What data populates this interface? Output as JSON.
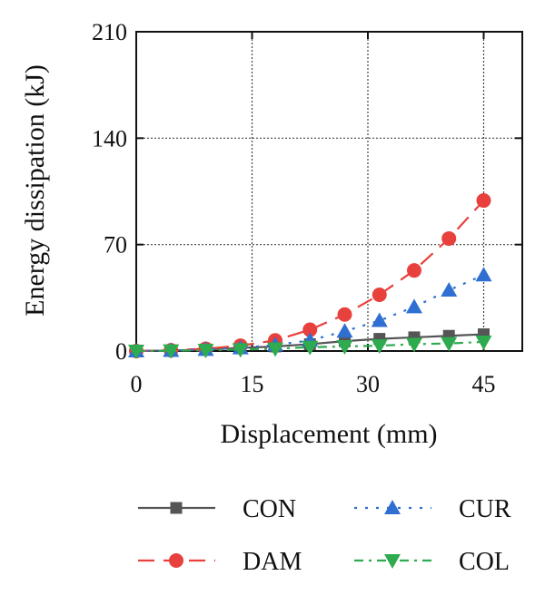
{
  "chart_data": {
    "type": "line",
    "title": "",
    "xlabel": "Displacement (mm)",
    "ylabel": "Energy dissipation (kJ)",
    "xlim": [
      0,
      50
    ],
    "ylim": [
      0,
      210
    ],
    "xticks": [
      "0",
      "15",
      "30",
      "45"
    ],
    "yticks": [
      "0",
      "70",
      "140",
      "210"
    ],
    "grid": true,
    "legend_position": "bottom",
    "x": [
      0,
      4.5,
      9,
      13.5,
      18,
      22.5,
      27,
      31.5,
      36,
      40.5,
      45
    ],
    "series": [
      {
        "name": "CON",
        "color": "#555555",
        "marker": "square",
        "dash": "solid",
        "values": [
          0,
          0.3,
          1,
          2,
          3,
          4.5,
          6.5,
          8,
          9,
          10,
          11
        ]
      },
      {
        "name": "DAM",
        "color": "#e8403c",
        "marker": "circle",
        "dash": "longdash",
        "values": [
          0,
          0.5,
          1.5,
          3.5,
          7,
          14,
          24,
          37,
          53,
          74,
          99
        ]
      },
      {
        "name": "CUR",
        "color": "#2f6fd1",
        "marker": "triangle-up",
        "dash": "dot",
        "values": [
          0,
          0.3,
          1,
          2,
          4,
          7,
          13,
          20,
          29,
          40,
          50
        ]
      },
      {
        "name": "COL",
        "color": "#2eaa4f",
        "marker": "triangle-down",
        "dash": "dashdot",
        "values": [
          0,
          0.2,
          0.5,
          1,
          1.5,
          2.5,
          3,
          3.5,
          4.5,
          5,
          6
        ]
      }
    ]
  }
}
